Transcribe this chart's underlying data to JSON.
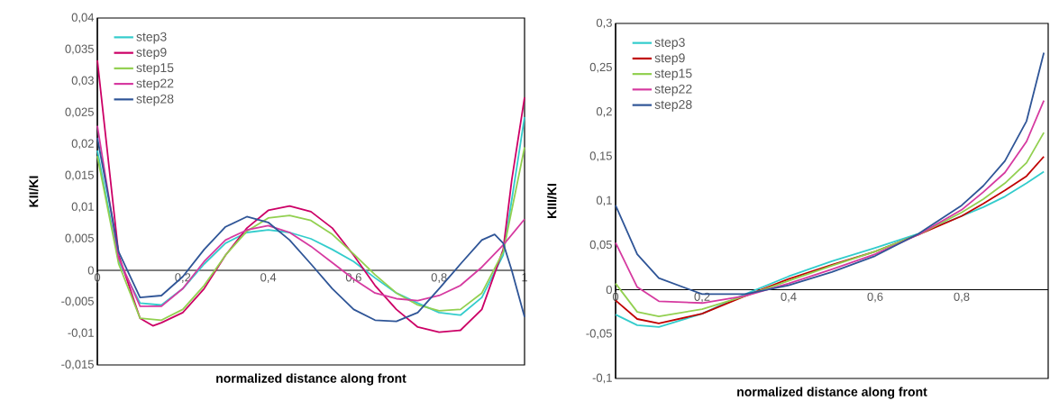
{
  "chart_data": [
    {
      "type": "line",
      "xlabel": "normalized distance along front",
      "ylabel": "KII/KI",
      "xlim": [
        0,
        1
      ],
      "ylim": [
        -0.015,
        0.04
      ],
      "xticks": [
        0,
        {
          "value": 0.2,
          "label": "0,2"
        },
        {
          "value": 0.4,
          "label": "0,4"
        },
        {
          "value": 0.6,
          "label": "0,6"
        },
        {
          "value": 0.8,
          "label": "0,8"
        },
        1
      ],
      "yticks": [
        {
          "value": -0.015,
          "label": "-0,015"
        },
        {
          "value": -0.01,
          "label": "-0,01"
        },
        {
          "value": -0.005,
          "label": "-0,005"
        },
        0,
        {
          "value": 0.005,
          "label": "0,005"
        },
        {
          "value": 0.01,
          "label": "0,01"
        },
        {
          "value": 0.015,
          "label": "0,015"
        },
        {
          "value": 0.02,
          "label": "0,02"
        },
        {
          "value": 0.025,
          "label": "0,025"
        },
        {
          "value": 0.03,
          "label": "0,03"
        },
        {
          "value": 0.035,
          "label": "0,035"
        },
        {
          "value": 0.04,
          "label": "0,04"
        }
      ],
      "legend": "top left",
      "marker": "none",
      "line_style": "solid",
      "series": [
        {
          "name": "step3",
          "color": "#33cccc",
          "x": [
            0,
            0.05,
            0.1,
            0.15,
            0.2,
            0.25,
            0.3,
            0.35,
            0.4,
            0.45,
            0.5,
            0.55,
            0.6,
            0.65,
            0.7,
            0.75,
            0.8,
            0.85,
            0.9,
            0.95,
            1
          ],
          "values": [
            0.019,
            0.0014,
            -0.0052,
            -0.0055,
            -0.0029,
            0.001,
            0.0043,
            0.006,
            0.0064,
            0.006,
            0.005,
            0.0033,
            0.0014,
            -0.0012,
            -0.0036,
            -0.0052,
            -0.0067,
            -0.0071,
            -0.0043,
            0.0024,
            0.0243
          ]
        },
        {
          "name": "step9",
          "color": "#cc0066",
          "x": [
            0,
            0.05,
            0.1,
            0.13,
            0.15,
            0.2,
            0.25,
            0.3,
            0.35,
            0.4,
            0.45,
            0.5,
            0.55,
            0.6,
            0.65,
            0.7,
            0.75,
            0.8,
            0.85,
            0.9,
            0.95,
            0.97,
            1
          ],
          "values": [
            0.0333,
            0.0024,
            -0.0076,
            -0.0088,
            -0.0083,
            -0.0067,
            -0.0029,
            0.0024,
            0.0067,
            0.0095,
            0.0102,
            0.0093,
            0.0067,
            0.0024,
            -0.0024,
            -0.0062,
            -0.009,
            -0.0098,
            -0.0095,
            -0.0062,
            0.0033,
            0.0143,
            0.0274
          ]
        },
        {
          "name": "step15",
          "color": "#92d050",
          "x": [
            0,
            0.05,
            0.1,
            0.15,
            0.2,
            0.25,
            0.3,
            0.35,
            0.4,
            0.45,
            0.5,
            0.55,
            0.6,
            0.65,
            0.7,
            0.75,
            0.8,
            0.85,
            0.9,
            0.95,
            1
          ],
          "values": [
            0.0181,
            0.001,
            -0.0076,
            -0.0079,
            -0.0062,
            -0.0024,
            0.0024,
            0.0062,
            0.0083,
            0.0087,
            0.0079,
            0.0057,
            0.0026,
            -0.0007,
            -0.0036,
            -0.0055,
            -0.0064,
            -0.0062,
            -0.0036,
            0.0029,
            0.0195
          ]
        },
        {
          "name": "step22",
          "color": "#d63aa0",
          "x": [
            0,
            0.05,
            0.1,
            0.15,
            0.2,
            0.25,
            0.3,
            0.35,
            0.4,
            0.45,
            0.5,
            0.55,
            0.6,
            0.65,
            0.7,
            0.75,
            0.8,
            0.85,
            0.9,
            0.95,
            1
          ],
          "values": [
            0.0229,
            0.0019,
            -0.0057,
            -0.0057,
            -0.0029,
            0.0014,
            0.0048,
            0.0064,
            0.0071,
            0.006,
            0.0038,
            0.0012,
            -0.0014,
            -0.0036,
            -0.0045,
            -0.0048,
            -0.004,
            -0.0024,
            0.0005,
            0.004,
            0.0081
          ]
        },
        {
          "name": "step28",
          "color": "#2f5597",
          "x": [
            0,
            0.05,
            0.1,
            0.15,
            0.2,
            0.25,
            0.3,
            0.35,
            0.4,
            0.45,
            0.5,
            0.55,
            0.6,
            0.65,
            0.7,
            0.75,
            0.8,
            0.85,
            0.9,
            0.93,
            0.95,
            0.97,
            1
          ],
          "values": [
            0.021,
            0.0029,
            -0.0043,
            -0.004,
            -0.001,
            0.0033,
            0.0069,
            0.0085,
            0.0076,
            0.0048,
            0.001,
            -0.0029,
            -0.0062,
            -0.0079,
            -0.0081,
            -0.0067,
            -0.0029,
            0.001,
            0.0048,
            0.0057,
            0.0043,
            0,
            -0.0074
          ]
        }
      ]
    },
    {
      "type": "line",
      "xlabel": "normalized distance along front",
      "ylabel": "KIII/KI",
      "xlim": [
        0,
        1
      ],
      "ylim": [
        -0.1,
        0.3
      ],
      "xticks": [
        0,
        {
          "value": 0.2,
          "label": "0,2"
        },
        {
          "value": 0.4,
          "label": "0,4"
        },
        {
          "value": 0.6,
          "label": "0,6"
        },
        {
          "value": 0.8,
          "label": "0,8"
        }
      ],
      "yticks": [
        {
          "value": -0.1,
          "label": "-0,1"
        },
        {
          "value": -0.05,
          "label": "-0,05"
        },
        0,
        {
          "value": 0.05,
          "label": "0,05"
        },
        {
          "value": 0.1,
          "label": "0,1"
        },
        {
          "value": 0.15,
          "label": "0,15"
        },
        {
          "value": 0.2,
          "label": "0,2"
        },
        {
          "value": 0.25,
          "label": "0,25"
        },
        {
          "value": 0.3,
          "label": "0,3"
        }
      ],
      "legend": "top left",
      "marker": "none",
      "line_style": "solid",
      "series": [
        {
          "name": "step3",
          "color": "#33cccc",
          "x": [
            0,
            0.05,
            0.1,
            0.2,
            0.3,
            0.4,
            0.5,
            0.6,
            0.7,
            0.8,
            0.85,
            0.9,
            0.95,
            0.99
          ],
          "values": [
            -0.028,
            -0.04,
            -0.042,
            -0.027,
            -0.005,
            0.015,
            0.032,
            0.047,
            0.063,
            0.083,
            0.093,
            0.105,
            0.12,
            0.133
          ]
        },
        {
          "name": "step9",
          "color": "#c00000",
          "x": [
            0,
            0.05,
            0.1,
            0.2,
            0.3,
            0.4,
            0.5,
            0.6,
            0.7,
            0.8,
            0.85,
            0.9,
            0.95,
            0.99
          ],
          "values": [
            -0.012,
            -0.033,
            -0.038,
            -0.027,
            -0.007,
            0.012,
            0.028,
            0.043,
            0.062,
            0.083,
            0.097,
            0.112,
            0.128,
            0.15
          ]
        },
        {
          "name": "step15",
          "color": "#92d050",
          "x": [
            0,
            0.05,
            0.1,
            0.2,
            0.3,
            0.4,
            0.5,
            0.6,
            0.7,
            0.8,
            0.85,
            0.9,
            0.95,
            0.99
          ],
          "values": [
            0.007,
            -0.025,
            -0.03,
            -0.022,
            -0.007,
            0.01,
            0.027,
            0.043,
            0.062,
            0.087,
            0.102,
            0.12,
            0.143,
            0.177
          ]
        },
        {
          "name": "step22",
          "color": "#d63aa0",
          "x": [
            0,
            0.05,
            0.1,
            0.2,
            0.3,
            0.4,
            0.5,
            0.6,
            0.7,
            0.8,
            0.85,
            0.9,
            0.95,
            0.99
          ],
          "values": [
            0.053,
            0.003,
            -0.013,
            -0.015,
            -0.007,
            0.007,
            0.023,
            0.04,
            0.062,
            0.09,
            0.11,
            0.132,
            0.167,
            0.213
          ]
        },
        {
          "name": "step28",
          "color": "#2f5597",
          "x": [
            0,
            0.05,
            0.1,
            0.2,
            0.3,
            0.4,
            0.5,
            0.6,
            0.7,
            0.8,
            0.85,
            0.9,
            0.95,
            0.99
          ],
          "values": [
            0.095,
            0.04,
            0.013,
            -0.005,
            -0.005,
            0.005,
            0.02,
            0.038,
            0.063,
            0.095,
            0.117,
            0.145,
            0.19,
            0.267
          ]
        }
      ]
    }
  ]
}
